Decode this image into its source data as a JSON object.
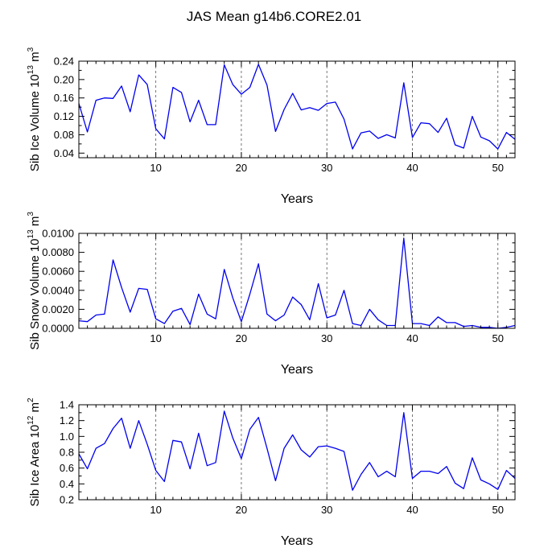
{
  "title": "JAS Mean g14b6.CORE2.01",
  "chart_data": [
    {
      "type": "line",
      "ylabel": "Sib Ice Volume 10",
      "ylabel_exp": "13",
      "ylabel_unit": " m",
      "ylabel_unit_exp": "3",
      "xlabel": "Years",
      "xlim": [
        1,
        52
      ],
      "ylim": [
        0.03,
        0.24
      ],
      "xticks": [
        10,
        20,
        30,
        40,
        50
      ],
      "yticks": [
        0.04,
        0.08,
        0.12,
        0.16,
        0.2,
        0.24
      ],
      "ytick_labels": [
        "0.04",
        "0.08",
        "0.12",
        "0.16",
        "0.20",
        "0.24"
      ],
      "color": "#0000ee",
      "x": [
        1,
        2,
        3,
        4,
        5,
        6,
        7,
        8,
        9,
        10,
        11,
        12,
        13,
        14,
        15,
        16,
        17,
        18,
        19,
        20,
        21,
        22,
        23,
        24,
        25,
        26,
        27,
        28,
        29,
        30,
        31,
        32,
        33,
        34,
        35,
        36,
        37,
        38,
        39,
        40,
        41,
        42,
        43,
        44,
        45,
        46,
        47,
        48,
        49,
        50,
        51,
        52
      ],
      "values": [
        0.148,
        0.086,
        0.155,
        0.16,
        0.159,
        0.186,
        0.13,
        0.21,
        0.189,
        0.093,
        0.071,
        0.183,
        0.172,
        0.108,
        0.155,
        0.102,
        0.102,
        0.232,
        0.189,
        0.168,
        0.183,
        0.233,
        0.188,
        0.087,
        0.135,
        0.17,
        0.134,
        0.139,
        0.133,
        0.148,
        0.151,
        0.114,
        0.049,
        0.084,
        0.088,
        0.072,
        0.08,
        0.073,
        0.193,
        0.074,
        0.106,
        0.104,
        0.085,
        0.116,
        0.058,
        0.051,
        0.12,
        0.075,
        0.067,
        0.049,
        0.085,
        0.07
      ]
    },
    {
      "type": "line",
      "ylabel": "Sib Snow Volume 10",
      "ylabel_exp": "13",
      "ylabel_unit": " m",
      "ylabel_unit_exp": "3",
      "xlabel": "Years",
      "xlim": [
        1,
        52
      ],
      "ylim": [
        0,
        0.01
      ],
      "xticks": [
        10,
        20,
        30,
        40,
        50
      ],
      "yticks": [
        0,
        0.002,
        0.004,
        0.006,
        0.008,
        0.01
      ],
      "ytick_labels": [
        "0.0000",
        "0.0020",
        "0.0040",
        "0.0060",
        "0.0080",
        "0.0100"
      ],
      "color": "#0000ee",
      "x": [
        1,
        2,
        3,
        4,
        5,
        6,
        7,
        8,
        9,
        10,
        11,
        12,
        13,
        14,
        15,
        16,
        17,
        18,
        19,
        20,
        21,
        22,
        23,
        24,
        25,
        26,
        27,
        28,
        29,
        30,
        31,
        32,
        33,
        34,
        35,
        36,
        37,
        38,
        39,
        40,
        41,
        42,
        43,
        44,
        45,
        46,
        47,
        48,
        49,
        50,
        51,
        52
      ],
      "values": [
        0.0008,
        0.0007,
        0.0014,
        0.0015,
        0.0072,
        0.0043,
        0.0017,
        0.0042,
        0.0041,
        0.001,
        0.0005,
        0.0018,
        0.0021,
        0.0004,
        0.0036,
        0.0015,
        0.001,
        0.0062,
        0.0032,
        0.0007,
        0.0036,
        0.0068,
        0.0015,
        0.0008,
        0.0014,
        0.0033,
        0.0025,
        0.0009,
        0.0047,
        0.0011,
        0.0014,
        0.004,
        0.0005,
        0.0003,
        0.002,
        0.0009,
        0.0003,
        0.0003,
        0.0095,
        0.0005,
        0.0005,
        0.0003,
        0.0012,
        0.0006,
        0.0006,
        0.0002,
        0.0003,
        0.0001,
        0.0001,
        0.0,
        0.0001,
        0.0003
      ]
    },
    {
      "type": "line",
      "ylabel": "Sib Ice Area 10",
      "ylabel_exp": "12",
      "ylabel_unit": " m",
      "ylabel_unit_exp": "2",
      "xlabel": "Years",
      "xlim": [
        1,
        52
      ],
      "ylim": [
        0.2,
        1.4
      ],
      "xticks": [
        10,
        20,
        30,
        40,
        50
      ],
      "yticks": [
        0.2,
        0.4,
        0.6,
        0.8,
        1.0,
        1.2,
        1.4
      ],
      "ytick_labels": [
        "0.2",
        "0.4",
        "0.6",
        "0.8",
        "1.0",
        "1.2",
        "1.4"
      ],
      "color": "#0000ee",
      "x": [
        1,
        2,
        3,
        4,
        5,
        6,
        7,
        8,
        9,
        10,
        11,
        12,
        13,
        14,
        15,
        16,
        17,
        18,
        19,
        20,
        21,
        22,
        23,
        24,
        25,
        26,
        27,
        28,
        29,
        30,
        31,
        32,
        33,
        34,
        35,
        36,
        37,
        38,
        39,
        40,
        41,
        42,
        43,
        44,
        45,
        46,
        47,
        48,
        49,
        50,
        51,
        52
      ],
      "values": [
        0.78,
        0.59,
        0.85,
        0.91,
        1.1,
        1.23,
        0.85,
        1.2,
        0.9,
        0.57,
        0.43,
        0.95,
        0.93,
        0.59,
        1.04,
        0.63,
        0.67,
        1.32,
        0.98,
        0.72,
        1.09,
        1.24,
        0.85,
        0.44,
        0.85,
        1.02,
        0.83,
        0.74,
        0.87,
        0.88,
        0.85,
        0.81,
        0.32,
        0.52,
        0.67,
        0.49,
        0.56,
        0.49,
        1.3,
        0.47,
        0.56,
        0.56,
        0.53,
        0.62,
        0.41,
        0.34,
        0.73,
        0.45,
        0.4,
        0.33,
        0.57,
        0.47
      ]
    }
  ]
}
